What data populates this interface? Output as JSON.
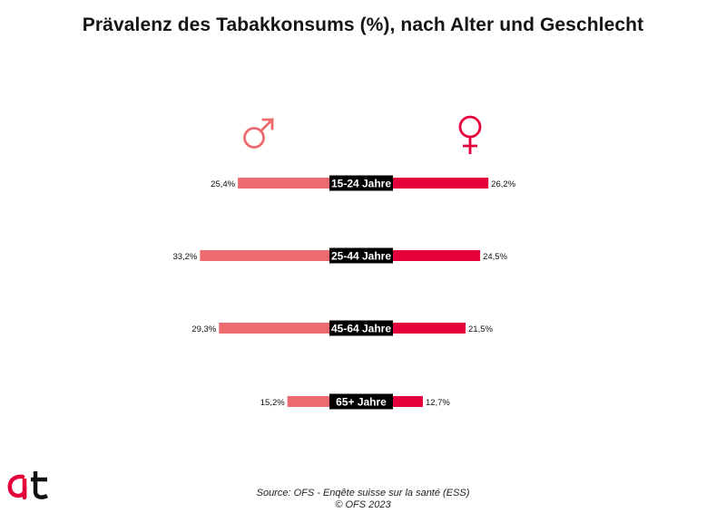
{
  "title": "Prävalenz des Tabakkonsums (%), nach Alter und Geschlecht",
  "source": "Source: OFS - Enqête suisse sur la santé (ESS)",
  "copyright": "© OFS 2023",
  "colors": {
    "male": "#EC6B6E",
    "female": "#E4003A",
    "label_bg": "#000000",
    "label_text": "#ffffff"
  },
  "icons": {
    "male": "male-symbol-icon",
    "female": "female-symbol-icon",
    "logo": "at-logo-icon"
  },
  "chart_data": {
    "type": "bar",
    "orientation": "diverging-horizontal",
    "categories": [
      "15-24 Jahre",
      "25-44 Jahre",
      "45-64 Jahre",
      "65+ Jahre"
    ],
    "series": [
      {
        "icon": "male-symbol-icon",
        "values": [
          25.4,
          33.2,
          29.3,
          15.2
        ],
        "labels": [
          "25,4%",
          "33,2%",
          "29,3%",
          "15,2%"
        ]
      },
      {
        "icon": "female-symbol-icon",
        "values": [
          26.2,
          24.5,
          21.5,
          12.7
        ],
        "labels": [
          "26,2%",
          "24,5%",
          "21,5%",
          "12,7%"
        ]
      }
    ],
    "grid": false
  }
}
